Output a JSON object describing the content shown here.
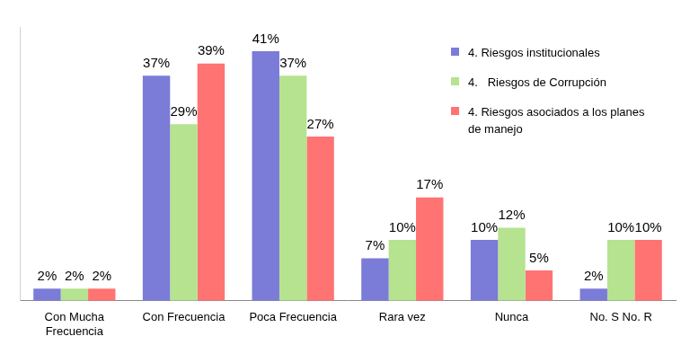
{
  "chart_data": {
    "type": "bar",
    "categories": [
      "Con Mucha Frecuencia",
      "Con Frecuencia",
      "Poca Frecuencia",
      "Rara vez",
      "Nunca",
      "No. S No. R"
    ],
    "series": [
      {
        "name": "4. Riesgos institucionales",
        "color": "#7b7bd8",
        "values": [
          2,
          37,
          41,
          7,
          10,
          2
        ],
        "value_labels": [
          "2%",
          "37%",
          "41%",
          "7%",
          "10%",
          "2%"
        ]
      },
      {
        "name": "4.   Riesgos de Corrupción",
        "color": "#b5e38f",
        "values": [
          2,
          29,
          37,
          10,
          12,
          10
        ],
        "value_labels": [
          "2%",
          "29%",
          "37%",
          "10%",
          "12%",
          "10%"
        ]
      },
      {
        "name": "4. Riesgos asociados a los planes de manejo",
        "color": "#ff7373",
        "values": [
          2,
          39,
          27,
          17,
          5,
          10
        ],
        "value_labels": [
          "2%",
          "39%",
          "27%",
          "17%",
          "5%",
          "10%"
        ]
      }
    ],
    "ylim": [
      0,
      45
    ],
    "grid": false,
    "legend": "top-right",
    "data_labels": true,
    "tick_labels": "x"
  }
}
